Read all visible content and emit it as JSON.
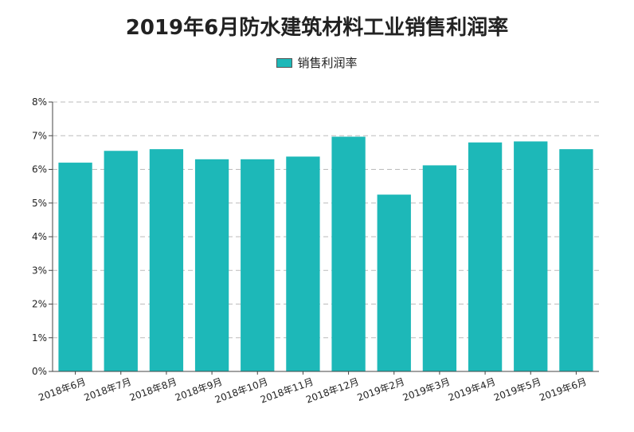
{
  "chart_data": {
    "type": "bar",
    "title": "2019年6月防水建筑材料工业销售利润率",
    "categories": [
      "2018年6月",
      "2018年7月",
      "2018年8月",
      "2018年9月",
      "2018年10月",
      "2018年11月",
      "2018年12月",
      "2019年2月",
      "2019年3月",
      "2019年4月",
      "2019年5月",
      "2019年6月"
    ],
    "series": [
      {
        "name": "销售利润率",
        "values": [
          6.2,
          6.55,
          6.6,
          6.3,
          6.3,
          6.38,
          6.97,
          5.25,
          6.12,
          6.8,
          6.83,
          6.6
        ]
      }
    ],
    "ylim": [
      0,
      8
    ],
    "yticks": [
      "0%",
      "1%",
      "2%",
      "3%",
      "4%",
      "5%",
      "6%",
      "7%",
      "8%"
    ],
    "grid": true,
    "legend_position": "top-center",
    "colors": {
      "bar": "#1db8b8",
      "grid": "#bbbbbb",
      "axis": "#444444"
    }
  }
}
